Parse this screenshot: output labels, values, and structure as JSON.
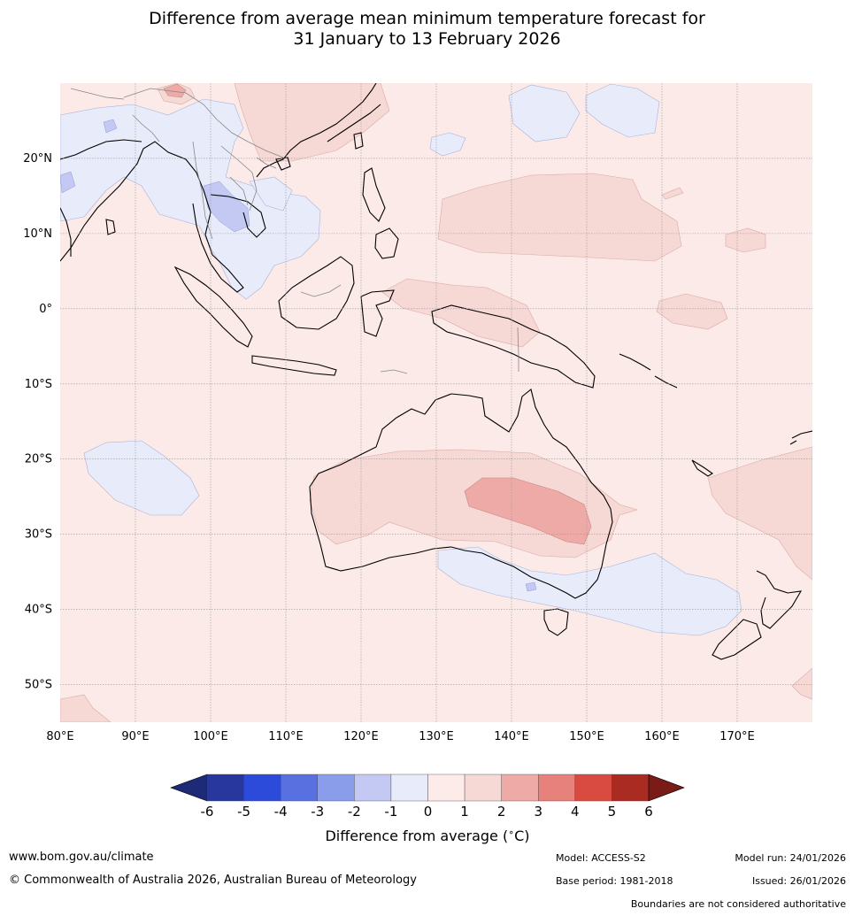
{
  "title": {
    "line1": "Difference from average mean minimum temperature forecast for",
    "line2": "31 January to 13 February 2026"
  },
  "map": {
    "lon_ticks": [
      "80°E",
      "90°E",
      "100°E",
      "110°E",
      "120°E",
      "130°E",
      "140°E",
      "150°E",
      "160°E",
      "170°E"
    ],
    "lat_ticks": [
      "20°N",
      "10°N",
      "0°",
      "10°S",
      "20°S",
      "30°S",
      "40°S",
      "50°S"
    ],
    "lon_range": [
      80,
      180
    ],
    "lat_range": [
      -55,
      30
    ],
    "background_anomaly": "0 to 1",
    "colors": {
      "ocean_base": "#fbeae8",
      "cool_light": "#e8ecfa",
      "cool_mid": "#c3c9f3",
      "warm_light": "#f6d8d5",
      "warm_mid": "#eeaaa6",
      "border": "#888888",
      "coast": "#000000"
    }
  },
  "colorbar": {
    "ticks": [
      "-6",
      "-5",
      "-4",
      "-3",
      "-2",
      "-1",
      "0",
      "1",
      "2",
      "3",
      "4",
      "5",
      "6"
    ],
    "colors": [
      "#27379e",
      "#2d4bdb",
      "#5870e0",
      "#8a9deb",
      "#c3c9f3",
      "#e8ecfa",
      "#fcebe9",
      "#f6d8d5",
      "#eeaaa6",
      "#e6817b",
      "#d94b40",
      "#a92b22"
    ],
    "under_color": "#1c2a77",
    "over_color": "#7a1b18",
    "label": "Difference from average (°C)",
    "label_main": "Difference from average (",
    "label_degree": "∘",
    "label_unit": "C)"
  },
  "footer": {
    "website": "www.bom.gov.au/climate",
    "copyright": "© Commonwealth of Australia 2026, Australian Bureau of Meteorology",
    "model": "Model: ACCESS-S2",
    "base_period": "Base period: 1981-2018",
    "model_run": "Model run: 24/01/2026",
    "issued": "Issued: 26/01/2026",
    "disclaimer": "Boundaries are not considered authoritative"
  }
}
